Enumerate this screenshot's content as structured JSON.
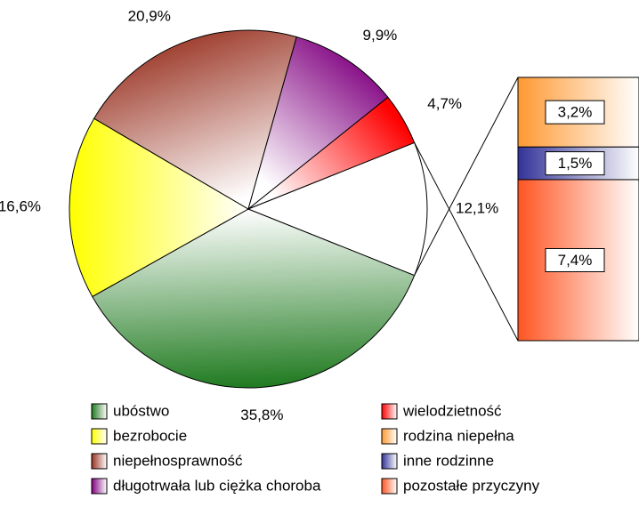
{
  "chart_data": {
    "type": "pie",
    "categories": [
      "ubóstwo",
      "bezrobocie",
      "niepełnosprawność",
      "długotrwała lub ciężka choroba",
      "wielodzietność",
      null
    ],
    "values": [
      35.8,
      16.6,
      20.9,
      9.9,
      4.7,
      12.1
    ],
    "value_labels": [
      "35,8%",
      "16,6%",
      "20,9%",
      "9,9%",
      "4,7%",
      "12,1%"
    ],
    "colors": [
      "#1f7a1f",
      "#ffff00",
      "#993322",
      "#800080",
      "#ff0000",
      "#ffffff"
    ],
    "bar": {
      "type": "bar",
      "categories": [
        "rodzina niepełna",
        "inne rodzinne",
        "pozostałe przyczyny"
      ],
      "values": [
        3.2,
        1.5,
        7.4
      ],
      "value_labels": [
        "3,2%",
        "1,5%",
        "7,4%"
      ],
      "colors": [
        "#ff9933",
        "#333399",
        "#ff5522"
      ]
    }
  }
}
